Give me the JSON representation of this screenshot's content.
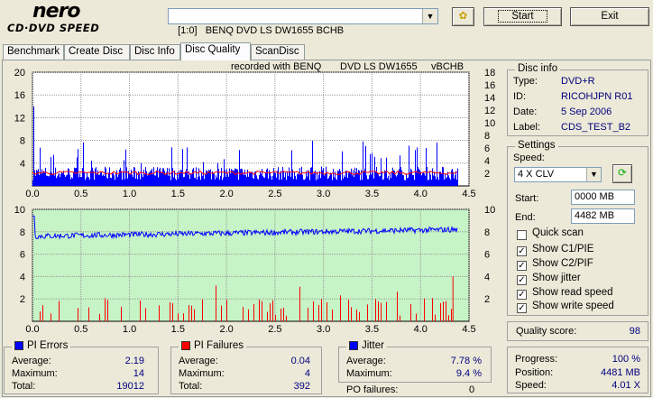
{
  "app": {
    "logo_top": "nero",
    "logo_bottom": "CD·DVD SPEED"
  },
  "toolbar": {
    "drive": "[1:0]   BENQ DVD LS DW1655 BCHB",
    "start_label": "Start",
    "exit_label": "Exit"
  },
  "tabs": [
    "Benchmark",
    "Create Disc",
    "Disc Info",
    "Disc Quality",
    "ScanDisc"
  ],
  "active_tab": "Disc Quality",
  "charts": {
    "top": {
      "header_left": "recorded with BENQ",
      "header_mid": "DVD LS DW1655",
      "header_right": "vBCHB",
      "left_ticks": [
        "20",
        "16",
        "12",
        "8",
        "4"
      ],
      "right_ticks": [
        "18",
        "16",
        "14",
        "12",
        "10",
        "8",
        "6",
        "4",
        "2"
      ],
      "x_ticks": [
        "0.0",
        "0.5",
        "1.0",
        "1.5",
        "2.0",
        "2.5",
        "3.0",
        "3.5",
        "4.0",
        "4.5"
      ]
    },
    "bottom": {
      "left_ticks": [
        "10",
        "8",
        "6",
        "4",
        "2"
      ],
      "right_ticks": [
        "10",
        "8",
        "6",
        "4",
        "2"
      ],
      "x_ticks": [
        "0.0",
        "0.5",
        "1.0",
        "1.5",
        "2.0",
        "2.5",
        "3.0",
        "3.5",
        "4.0",
        "4.5"
      ]
    }
  },
  "chart_data": [
    {
      "type": "bar",
      "panel": "PI errors / PI failures sum",
      "x_unit": "GB",
      "xlim": [
        0,
        4.5
      ],
      "ylim_left": [
        0,
        20
      ],
      "ylim_right": [
        0,
        18
      ],
      "series": [
        {
          "name": "PI Errors",
          "color": "#0000ff",
          "baseline": 2.2,
          "max": 14
        },
        {
          "name": "Read speed",
          "color": "#ff0000",
          "level": 2.3
        }
      ]
    },
    {
      "type": "bar",
      "panel": "PI failures / jitter",
      "x_unit": "GB",
      "xlim": [
        0,
        4.5
      ],
      "ylim_left": [
        0,
        10
      ],
      "ylim_right": [
        0,
        10
      ],
      "series": [
        {
          "name": "PI Failures",
          "color": "#ff0000",
          "max": 4
        },
        {
          "name": "Jitter",
          "color": "#0000ff",
          "start": 7.6,
          "end": 8.2
        }
      ]
    }
  ],
  "disc_info": {
    "title": "Disc info",
    "rows": [
      {
        "label": "Type:",
        "value": "DVD+R"
      },
      {
        "label": "ID:",
        "value": "RICOHJPN R01"
      },
      {
        "label": "Date:",
        "value": "5 Sep 2006"
      },
      {
        "label": "Label:",
        "value": "CDS_TEST_B2"
      }
    ]
  },
  "settings": {
    "title": "Settings",
    "speed_label": "Speed:",
    "speed_value": "4 X CLV",
    "start_label": "Start:",
    "start_value": "0000 MB",
    "end_label": "End:",
    "end_value": "4482 MB",
    "options": [
      {
        "label": "Quick scan",
        "checked": false
      },
      {
        "label": "Show C1/PIE",
        "checked": true
      },
      {
        "label": "Show C2/PIF",
        "checked": true
      },
      {
        "label": "Show jitter",
        "checked": true
      },
      {
        "label": "Show read speed",
        "checked": true
      },
      {
        "label": "Show write speed",
        "checked": true
      }
    ]
  },
  "quality": {
    "label": "Quality score:",
    "value": "98"
  },
  "pi_errors": {
    "title": "PI Errors",
    "color": "#0000ff",
    "rows": [
      {
        "label": "Average:",
        "value": "2.19"
      },
      {
        "label": "Maximum:",
        "value": "14"
      },
      {
        "label": "Total:",
        "value": "19012"
      }
    ]
  },
  "pi_failures": {
    "title": "PI Failures",
    "color": "#ff0000",
    "rows": [
      {
        "label": "Average:",
        "value": "0.04"
      },
      {
        "label": "Maximum:",
        "value": "4"
      },
      {
        "label": "Total:",
        "value": "392"
      }
    ]
  },
  "jitter": {
    "title": "Jitter",
    "color": "#0000ff",
    "rows": [
      {
        "label": "Average:",
        "value": "7.78 %"
      },
      {
        "label": "Maximum:",
        "value": "9.4 %"
      }
    ],
    "po_label": "PO failures:",
    "po_value": "0"
  },
  "progress": {
    "rows": [
      {
        "label": "Progress:",
        "value": "100 %"
      },
      {
        "label": "Position:",
        "value": "4481 MB"
      },
      {
        "label": "Speed:",
        "value": "4.01 X"
      }
    ]
  }
}
